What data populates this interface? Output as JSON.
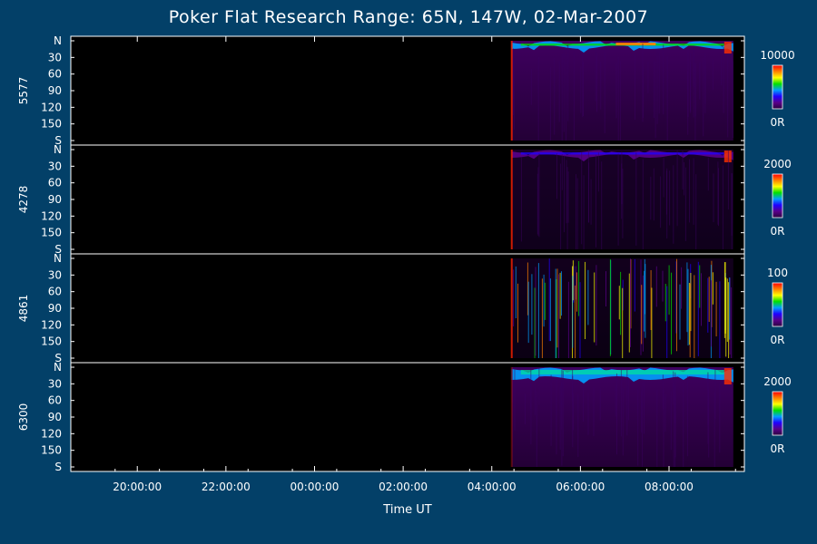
{
  "chart_data": {
    "type": "heatmap",
    "title": "Poker Flat Research Range: 65N, 147W, 02-Mar-2007",
    "xlabel": "Time UT",
    "x_range_hours": [
      18.5,
      33.7
    ],
    "x_ticks": [
      {
        "label": "20:00:00",
        "hour": 20
      },
      {
        "label": "22:00:00",
        "hour": 22
      },
      {
        "label": "00:00:00",
        "hour": 24
      },
      {
        "label": "02:00:00",
        "hour": 26
      },
      {
        "label": "04:00:00",
        "hour": 28
      },
      {
        "label": "06:00:00",
        "hour": 30
      },
      {
        "label": "08:00:00",
        "hour": 32
      }
    ],
    "data_start_hour": 28.45,
    "data_end_hour": 33.45,
    "y_axis": {
      "range_deg": [
        0,
        180
      ],
      "ticks": [
        {
          "label": "N",
          "value": 0
        },
        {
          "label": "30",
          "value": 30
        },
        {
          "label": "60",
          "value": 60
        },
        {
          "label": "90",
          "value": 90
        },
        {
          "label": "120",
          "value": 120
        },
        {
          "label": "150",
          "value": 150
        },
        {
          "label": "S",
          "value": 180
        }
      ]
    },
    "panels": [
      {
        "wavelength": "5577",
        "color_max": "10000",
        "color_min": "0R"
      },
      {
        "wavelength": "4278",
        "color_max": "2000",
        "color_min": "0R"
      },
      {
        "wavelength": "4861",
        "color_max": "100",
        "color_min": "0R"
      },
      {
        "wavelength": "6300",
        "color_max": "2000",
        "color_min": "0R"
      }
    ],
    "colorscale": [
      "#2a0040",
      "#5a008a",
      "#2000ff",
      "#00a0ff",
      "#00e000",
      "#ffff00",
      "#ff8000",
      "#ff0000"
    ]
  },
  "colors": {
    "background": "#034068",
    "plot": "#000000",
    "axis": "#ffffff"
  }
}
